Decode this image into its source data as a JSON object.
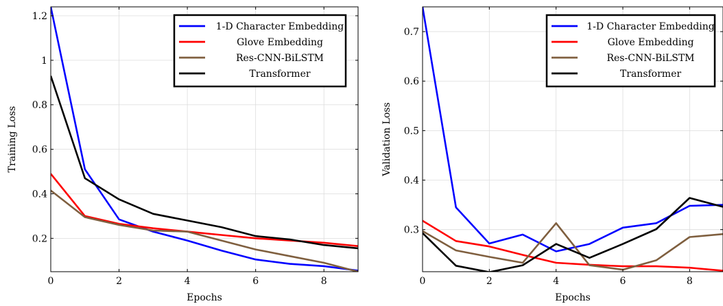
{
  "chart_data": [
    {
      "type": "line",
      "title": "",
      "xlabel": "Epochs",
      "ylabel": "Training Loss",
      "xlim": [
        0,
        9
      ],
      "ylim": [
        0.05,
        1.24
      ],
      "xticks": [
        0,
        2,
        4,
        6,
        8
      ],
      "yticks": [
        0.2,
        0.4,
        0.6,
        0.8,
        1,
        1.2
      ],
      "ytick_labels": [
        "0.2",
        "0.4",
        "0.6",
        "0.8",
        "1",
        "1.2"
      ],
      "grid": true,
      "legend_position": "top-right",
      "x": [
        0,
        1,
        2,
        3,
        4,
        5,
        6,
        7,
        8,
        9
      ],
      "series": [
        {
          "name": "1-D Character Embedding",
          "color": "#0000ff",
          "values": [
            1.24,
            0.51,
            0.285,
            0.23,
            0.19,
            0.145,
            0.105,
            0.085,
            0.075,
            0.055
          ]
        },
        {
          "name": "Glove Embedding",
          "color": "#ff0000",
          "values": [
            0.49,
            0.3,
            0.265,
            0.245,
            0.23,
            0.215,
            0.2,
            0.19,
            0.18,
            0.165
          ]
        },
        {
          "name": "Res-CNN-BiLSTM",
          "color": "#7f5f3f",
          "values": [
            0.415,
            0.295,
            0.26,
            0.235,
            0.23,
            0.19,
            0.15,
            0.12,
            0.09,
            0.05
          ]
        },
        {
          "name": "Transformer",
          "color": "#000000",
          "values": [
            0.93,
            0.47,
            0.375,
            0.31,
            0.28,
            0.25,
            0.21,
            0.195,
            0.17,
            0.155
          ]
        }
      ]
    },
    {
      "type": "line",
      "title": "",
      "xlabel": "Epochs",
      "ylabel": "Validation Loss",
      "xlim": [
        0,
        9
      ],
      "ylim": [
        0.215,
        0.75
      ],
      "xticks": [
        0,
        2,
        4,
        6,
        8
      ],
      "yticks": [
        0.3,
        0.4,
        0.5,
        0.6,
        0.7
      ],
      "ytick_labels": [
        "0.3",
        "0.4",
        "0.5",
        "0.6",
        "0.7"
      ],
      "grid": true,
      "legend_position": "top-right",
      "x": [
        0,
        1,
        2,
        3,
        4,
        5,
        6,
        7,
        8,
        9
      ],
      "series": [
        {
          "name": "1-D Character Embedding",
          "color": "#0000ff",
          "values": [
            0.75,
            0.345,
            0.272,
            0.29,
            0.256,
            0.271,
            0.304,
            0.313,
            0.348,
            0.35
          ]
        },
        {
          "name": "Glove Embedding",
          "color": "#ff0000",
          "values": [
            0.318,
            0.277,
            0.266,
            0.249,
            0.233,
            0.229,
            0.226,
            0.226,
            0.223,
            0.217
          ]
        },
        {
          "name": "Res-CNN-BiLSTM",
          "color": "#7f5f3f",
          "values": [
            0.297,
            0.258,
            0.245,
            0.233,
            0.313,
            0.228,
            0.219,
            0.238,
            0.285,
            0.291
          ]
        },
        {
          "name": "Transformer",
          "color": "#000000",
          "values": [
            0.293,
            0.227,
            0.214,
            0.228,
            0.271,
            0.243,
            0.271,
            0.301,
            0.364,
            0.346
          ]
        }
      ]
    }
  ]
}
